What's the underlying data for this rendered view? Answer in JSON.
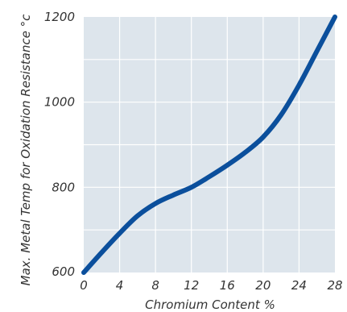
{
  "chart_data": {
    "type": "line",
    "title": "",
    "xlabel": "Chromium Content %",
    "ylabel": "Max. Metal Temp for Oxidation Resistance °c",
    "xlim": [
      0,
      28
    ],
    "ylim": [
      600,
      1200
    ],
    "xticks": [
      "0",
      "4",
      "8",
      "12",
      "16",
      "20",
      "24",
      "28"
    ],
    "yticks": [
      "600",
      "800",
      "1000",
      "1200"
    ],
    "grid": true,
    "series": [
      {
        "color": "#0b4f9c",
        "x": [
          0,
          2,
          4,
          6,
          8,
          10,
          12,
          14,
          16,
          18,
          20,
          22,
          24,
          26,
          28
        ],
        "y": [
          600,
          647,
          692,
          733,
          762,
          782,
          800,
          825,
          852,
          882,
          918,
          970,
          1040,
          1120,
          1200
        ]
      }
    ]
  },
  "colors": {
    "plot_background": "#dde5ec",
    "gridline": "#ffffff",
    "line": "#0b4f9c"
  }
}
